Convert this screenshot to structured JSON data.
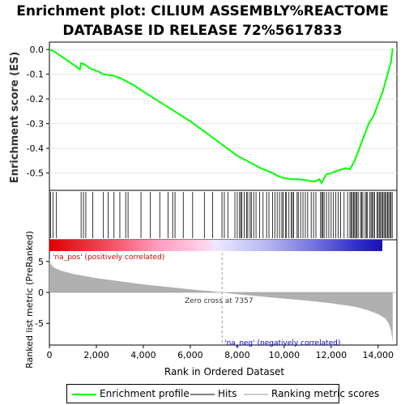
{
  "title_line1": "Enrichment plot: CILIUM ASSEMBLY%REACTOME",
  "title_line2": "DATABASE ID RELEASE 72%5617833",
  "chart_data": [
    {
      "type": "line",
      "name": "enrichment-profile",
      "ylabel": "Enrichment score (ES)",
      "xlim": [
        0,
        14800
      ],
      "ylim": [
        -0.57,
        0.03
      ],
      "yticks": [
        0.0,
        -0.1,
        -0.2,
        -0.3,
        -0.4,
        -0.5
      ],
      "ytick_labels": [
        "0.0",
        "-0.1",
        "-0.2",
        "-0.3",
        "-0.4",
        "-0.5"
      ],
      "x": [
        0,
        150,
        400,
        700,
        1000,
        1300,
        1350,
        1500,
        1700,
        2100,
        2300,
        2700,
        3000,
        3300,
        3600,
        4000,
        4500,
        5000,
        5500,
        6000,
        6500,
        7000,
        7500,
        8000,
        8500,
        9000,
        9500,
        9800,
        10000,
        10300,
        10600,
        11000,
        11300,
        11500,
        11600,
        11700,
        11800,
        12000,
        12300,
        12600,
        12800,
        13000,
        13200,
        13400,
        13600,
        13800,
        14000,
        14200,
        14400,
        14550,
        14620
      ],
      "y": [
        0.0,
        -0.005,
        -0.02,
        -0.04,
        -0.06,
        -0.08,
        -0.055,
        -0.06,
        -0.075,
        -0.09,
        -0.1,
        -0.105,
        -0.115,
        -0.13,
        -0.145,
        -0.17,
        -0.2,
        -0.23,
        -0.26,
        -0.29,
        -0.325,
        -0.36,
        -0.395,
        -0.43,
        -0.455,
        -0.48,
        -0.5,
        -0.515,
        -0.52,
        -0.525,
        -0.525,
        -0.53,
        -0.535,
        -0.525,
        -0.54,
        -0.52,
        -0.505,
        -0.5,
        -0.49,
        -0.48,
        -0.485,
        -0.45,
        -0.4,
        -0.35,
        -0.3,
        -0.27,
        -0.22,
        -0.17,
        -0.1,
        -0.05,
        0.005
      ]
    },
    {
      "type": "bar",
      "name": "hits",
      "x": [
        50,
        150,
        300,
        1350,
        1450,
        1550,
        1850,
        2300,
        2500,
        2750,
        3000,
        3250,
        3350,
        3900,
        4300,
        4700,
        5050,
        5250,
        5350,
        5700,
        6100,
        6600,
        6950,
        7350,
        7450,
        7600,
        7900,
        8000,
        8100,
        8150,
        8200,
        8300,
        8400,
        8450,
        8550,
        8600,
        8700,
        8800,
        8950,
        9100,
        9250,
        9350,
        9500,
        9600,
        9700,
        9800,
        9900,
        9950,
        10050,
        10100,
        10200,
        10300,
        10350,
        10400,
        10550,
        10600,
        10700,
        10800,
        10900,
        11000,
        11150,
        11250,
        11350,
        11550,
        11600,
        11650,
        11700,
        11800,
        11900,
        12000,
        12100,
        12200,
        12300,
        12400,
        12550,
        12700,
        12800,
        12850,
        12900,
        12950,
        13000,
        13050,
        13100,
        13150,
        13250,
        13300,
        13350,
        13450,
        13500,
        13550,
        13650,
        13700,
        13750,
        13800,
        13850,
        13950,
        14000,
        14050,
        14100,
        14150,
        14200,
        14250,
        14300,
        14350,
        14400,
        14450,
        14500,
        14550,
        14600
      ]
    },
    {
      "type": "area",
      "name": "ranked-list-metric",
      "ylabel": "Ranked list metric (PreRanked)",
      "xlabel": "Rank in Ordered Dataset",
      "xlim": [
        0,
        14800
      ],
      "ylim": [
        -8.5,
        8.5
      ],
      "yticks": [
        5,
        0,
        -5
      ],
      "ytick_labels": [
        "5",
        "0",
        "-5"
      ],
      "xticks": [
        0,
        2000,
        4000,
        6000,
        8000,
        10000,
        12000,
        14000
      ],
      "xtick_labels": [
        "0",
        "2,000",
        "4,000",
        "6,000",
        "8,000",
        "10,000",
        "12,000",
        "14,000"
      ],
      "x": [
        0,
        50,
        200,
        500,
        1000,
        2000,
        3000,
        4000,
        5000,
        6000,
        7000,
        7357,
        8000,
        9000,
        10000,
        11000,
        12000,
        13000,
        13500,
        14000,
        14300,
        14450,
        14550,
        14620
      ],
      "y": [
        5.5,
        4.6,
        4.0,
        3.5,
        3.0,
        2.3,
        1.8,
        1.3,
        0.9,
        0.5,
        0.15,
        0.0,
        -0.3,
        -0.65,
        -1.0,
        -1.35,
        -1.75,
        -2.3,
        -2.8,
        -3.5,
        -4.2,
        -5.0,
        -6.2,
        -8.0
      ],
      "annotations": {
        "pos_label": "'na_pos' (positively correlated)",
        "neg_label": "'na_neg' (negatively correlated)",
        "zero_cross": "Zero cross at 7357",
        "zero_cross_x": 7357
      }
    }
  ],
  "legend": {
    "items": [
      {
        "label": "Enrichment profile",
        "color": "#00ff00"
      },
      {
        "label": "Hits",
        "color": "#808080"
      },
      {
        "label": "Ranking metric scores",
        "color": "#cccccc"
      }
    ]
  },
  "colors": {
    "es_line": "#00ff00",
    "metric_fill": "#b0b0b0",
    "pos_label": "#cc0000",
    "neg_label": "#0000cc"
  }
}
